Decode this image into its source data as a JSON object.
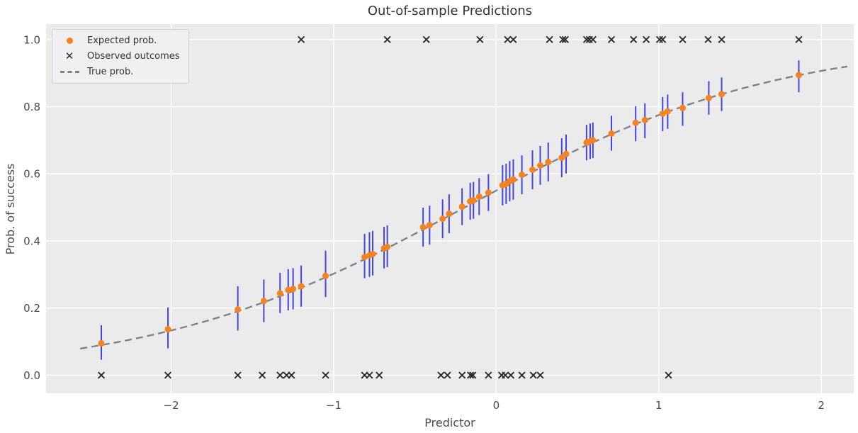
{
  "figure": {
    "title": "Out-of-sample Predictions",
    "xlabel": "Predictor",
    "ylabel": "Prob. of success"
  },
  "legend": {
    "items": [
      {
        "marker": "dot",
        "label": "Expected prob."
      },
      {
        "marker": "x",
        "label": "Observed outcomes"
      },
      {
        "marker": "dash",
        "label": "True prob."
      }
    ]
  },
  "colors": {
    "plot_background": "#ebebeb",
    "gridline": "#ffffff",
    "expected_dot": "#f7821e",
    "error_bar": "#4444e0",
    "observed_x": "#2b2b2b",
    "true_line": "#7f828a",
    "tick_text": "#4a4a4a",
    "title_text": "#343434"
  },
  "chart_data": {
    "type": "scatter",
    "title": "Out-of-sample Predictions",
    "xlabel": "Predictor",
    "ylabel": "Prob. of success",
    "xlim": [
      -2.77,
      2.2
    ],
    "ylim": [
      -0.054,
      1.046
    ],
    "grid": true,
    "legend_position": "upper-left",
    "xticks": {
      "values": [
        -2,
        -1,
        0,
        1,
        2
      ],
      "labels": [
        "−2",
        "−1",
        "0",
        "1",
        "2"
      ]
    },
    "yticks": {
      "values": [
        0.0,
        0.2,
        0.4,
        0.6,
        0.8,
        1.0
      ],
      "labels": [
        "0.0",
        "0.2",
        "0.4",
        "0.6",
        "0.8",
        "1.0"
      ]
    },
    "series": [
      {
        "name": "Expected prob.",
        "kind": "scatter_with_errorbars",
        "points": [
          {
            "x": -2.43,
            "p": 0.095,
            "lo": 0.046,
            "hi": 0.149
          },
          {
            "x": -2.02,
            "p": 0.137,
            "lo": 0.08,
            "hi": 0.202
          },
          {
            "x": -1.59,
            "p": 0.196,
            "lo": 0.133,
            "hi": 0.265
          },
          {
            "x": -1.43,
            "p": 0.221,
            "lo": 0.158,
            "hi": 0.285
          },
          {
            "x": -1.33,
            "p": 0.244,
            "lo": 0.185,
            "hi": 0.305
          },
          {
            "x": -1.28,
            "p": 0.254,
            "lo": 0.193,
            "hi": 0.316
          },
          {
            "x": -1.25,
            "p": 0.257,
            "lo": 0.196,
            "hi": 0.319
          },
          {
            "x": -1.2,
            "p": 0.265,
            "lo": 0.204,
            "hi": 0.327
          },
          {
            "x": -1.05,
            "p": 0.296,
            "lo": 0.233,
            "hi": 0.371
          },
          {
            "x": -0.81,
            "p": 0.352,
            "lo": 0.289,
            "hi": 0.421
          },
          {
            "x": -0.78,
            "p": 0.357,
            "lo": 0.293,
            "hi": 0.426
          },
          {
            "x": -0.76,
            "p": 0.361,
            "lo": 0.297,
            "hi": 0.43
          },
          {
            "x": -0.69,
            "p": 0.378,
            "lo": 0.318,
            "hi": 0.442
          },
          {
            "x": -0.67,
            "p": 0.382,
            "lo": 0.322,
            "hi": 0.446
          },
          {
            "x": -0.45,
            "p": 0.441,
            "lo": 0.383,
            "hi": 0.499
          },
          {
            "x": -0.41,
            "p": 0.447,
            "lo": 0.389,
            "hi": 0.505
          },
          {
            "x": -0.33,
            "p": 0.466,
            "lo": 0.408,
            "hi": 0.524
          },
          {
            "x": -0.29,
            "p": 0.481,
            "lo": 0.423,
            "hi": 0.539
          },
          {
            "x": -0.21,
            "p": 0.502,
            "lo": 0.447,
            "hi": 0.557
          },
          {
            "x": -0.16,
            "p": 0.518,
            "lo": 0.463,
            "hi": 0.573
          },
          {
            "x": -0.14,
            "p": 0.521,
            "lo": 0.466,
            "hi": 0.576
          },
          {
            "x": -0.105,
            "p": 0.532,
            "lo": 0.477,
            "hi": 0.587
          },
          {
            "x": -0.048,
            "p": 0.544,
            "lo": 0.489,
            "hi": 0.599
          },
          {
            "x": 0.039,
            "p": 0.566,
            "lo": 0.506,
            "hi": 0.626
          },
          {
            "x": 0.061,
            "p": 0.57,
            "lo": 0.51,
            "hi": 0.63
          },
          {
            "x": 0.083,
            "p": 0.578,
            "lo": 0.518,
            "hi": 0.638
          },
          {
            "x": 0.105,
            "p": 0.583,
            "lo": 0.523,
            "hi": 0.643
          },
          {
            "x": 0.158,
            "p": 0.597,
            "lo": 0.539,
            "hi": 0.655
          },
          {
            "x": 0.223,
            "p": 0.612,
            "lo": 0.554,
            "hi": 0.67
          },
          {
            "x": 0.271,
            "p": 0.625,
            "lo": 0.567,
            "hi": 0.683
          },
          {
            "x": 0.32,
            "p": 0.635,
            "lo": 0.577,
            "hi": 0.693
          },
          {
            "x": 0.403,
            "p": 0.648,
            "lo": 0.59,
            "hi": 0.706
          },
          {
            "x": 0.43,
            "p": 0.659,
            "lo": 0.601,
            "hi": 0.717
          },
          {
            "x": 0.556,
            "p": 0.693,
            "lo": 0.64,
            "hi": 0.746
          },
          {
            "x": 0.578,
            "p": 0.697,
            "lo": 0.644,
            "hi": 0.75
          },
          {
            "x": 0.595,
            "p": 0.7,
            "lo": 0.647,
            "hi": 0.753
          },
          {
            "x": 0.709,
            "p": 0.72,
            "lo": 0.669,
            "hi": 0.773
          },
          {
            "x": 0.858,
            "p": 0.752,
            "lo": 0.697,
            "hi": 0.801
          },
          {
            "x": 0.915,
            "p": 0.76,
            "lo": 0.706,
            "hi": 0.81
          },
          {
            "x": 1.024,
            "p": 0.779,
            "lo": 0.727,
            "hi": 0.829
          },
          {
            "x": 1.055,
            "p": 0.786,
            "lo": 0.734,
            "hi": 0.836
          },
          {
            "x": 1.147,
            "p": 0.796,
            "lo": 0.743,
            "hi": 0.843
          },
          {
            "x": 1.308,
            "p": 0.826,
            "lo": 0.776,
            "hi": 0.876
          },
          {
            "x": 1.387,
            "p": 0.837,
            "lo": 0.787,
            "hi": 0.887
          },
          {
            "x": 1.862,
            "p": 0.894,
            "lo": 0.843,
            "hi": 0.938
          }
        ]
      },
      {
        "name": "Observed outcomes",
        "kind": "outcome_rug",
        "successes_x": [
          -1.2,
          -0.67,
          -0.43,
          -0.1,
          0.07,
          0.105,
          0.328,
          0.41,
          0.425,
          0.556,
          0.573,
          0.595,
          0.709,
          0.845,
          0.923,
          1.005,
          1.024,
          1.147,
          1.304,
          1.387,
          1.862
        ],
        "successes_y": 1.0,
        "failures_x": [
          -2.43,
          -2.02,
          -1.59,
          -1.44,
          -1.33,
          -1.29,
          -1.26,
          -1.05,
          -0.81,
          -0.78,
          -0.72,
          -0.34,
          -0.3,
          -0.21,
          -0.158,
          -0.144,
          -0.048,
          0.033,
          0.056,
          0.09,
          0.158,
          0.228,
          0.271,
          1.06
        ],
        "failures_y": 0.0
      },
      {
        "name": "True prob.",
        "kind": "logistic_curve",
        "style": "dashed",
        "intercept": 0.2,
        "slope": 1.036,
        "x_range": [
          -2.56,
          2.16
        ]
      }
    ]
  }
}
